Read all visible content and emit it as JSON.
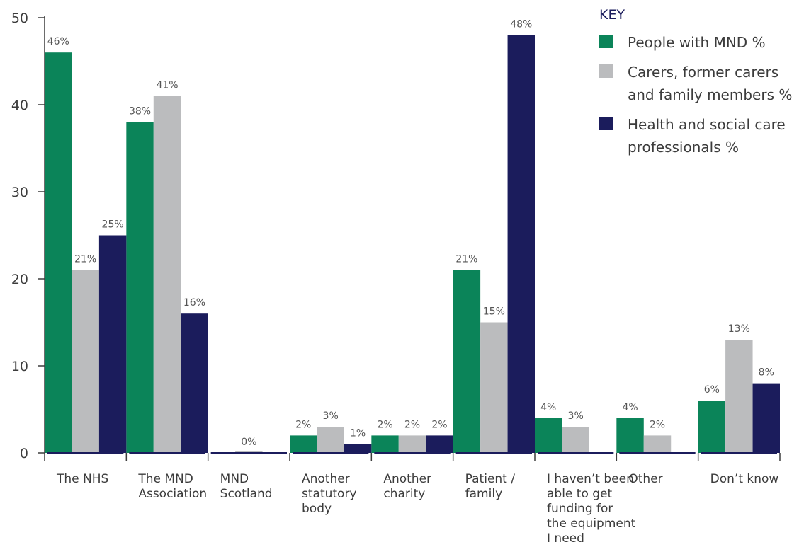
{
  "chart_data": {
    "type": "bar",
    "title": "",
    "xlabel": "",
    "ylabel": "",
    "ylim": [
      0,
      50
    ],
    "yticks": [
      "0",
      "10",
      "20",
      "30",
      "40",
      "50"
    ],
    "grid": false,
    "legend_position": "top-right",
    "categories": [
      [
        "The NHS"
      ],
      [
        "The MND",
        "Association"
      ],
      [
        "MND",
        "Scotland"
      ],
      [
        "Another",
        "statutory",
        "body"
      ],
      [
        "Another",
        "charity"
      ],
      [
        "Patient /",
        "family"
      ],
      [
        "I haven’t been",
        "able to get",
        "funding for",
        "the equipment",
        "I need"
      ],
      [
        "Other"
      ],
      [
        "Don’t know"
      ]
    ],
    "series": [
      {
        "name": "People with MND %",
        "color": "#0b8459",
        "values": [
          46,
          38,
          null,
          2,
          2,
          21,
          4,
          4,
          6
        ],
        "labels": [
          "46%",
          "38%",
          "",
          "2%",
          "2%",
          "21%",
          "4%",
          "4%",
          "6%"
        ]
      },
      {
        "name": "Carers, former carers and family members %",
        "color": "#bbbcbe",
        "values": [
          21,
          41,
          0,
          3,
          2,
          15,
          3,
          2,
          13
        ],
        "labels": [
          "21%",
          "41%",
          "0%",
          "3%",
          "2%",
          "15%",
          "3%",
          "2%",
          "13%"
        ]
      },
      {
        "name": "Health and social care professionals %",
        "color": "#1b1c5c",
        "values": [
          25,
          16,
          null,
          1,
          2,
          48,
          null,
          null,
          8
        ],
        "labels": [
          "25%",
          "16%",
          "",
          "1%",
          "2%",
          "48%",
          "",
          "",
          "8%"
        ]
      }
    ]
  },
  "legend": {
    "title": "KEY",
    "items": [
      {
        "lines": [
          "People with MND %"
        ],
        "color": "#0b8459"
      },
      {
        "lines": [
          "Carers, former carers",
          "and family members %"
        ],
        "color": "#bbbcbe"
      },
      {
        "lines": [
          "Health and social care",
          "professionals %"
        ],
        "color": "#1b1c5c"
      }
    ]
  }
}
